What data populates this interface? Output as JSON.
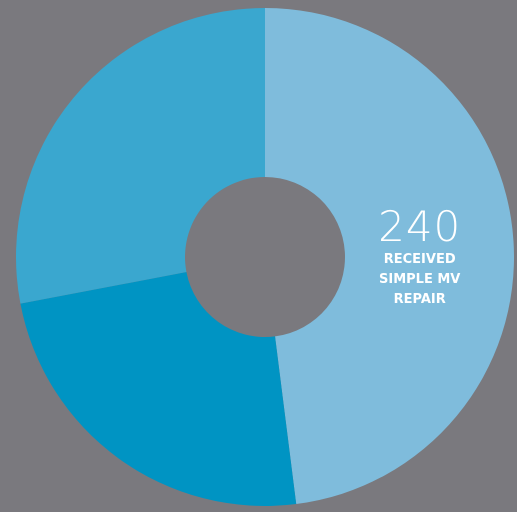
{
  "chart_data": {
    "type": "donut",
    "categories": [
      "RECEIVED SIMPLE MV REPAIR",
      null,
      null
    ],
    "values": [
      240,
      120,
      140
    ],
    "colors": [
      "#7fbcdc",
      "#0094c3",
      "#3aa7cf"
    ],
    "background": "#7a797e"
  }
}
